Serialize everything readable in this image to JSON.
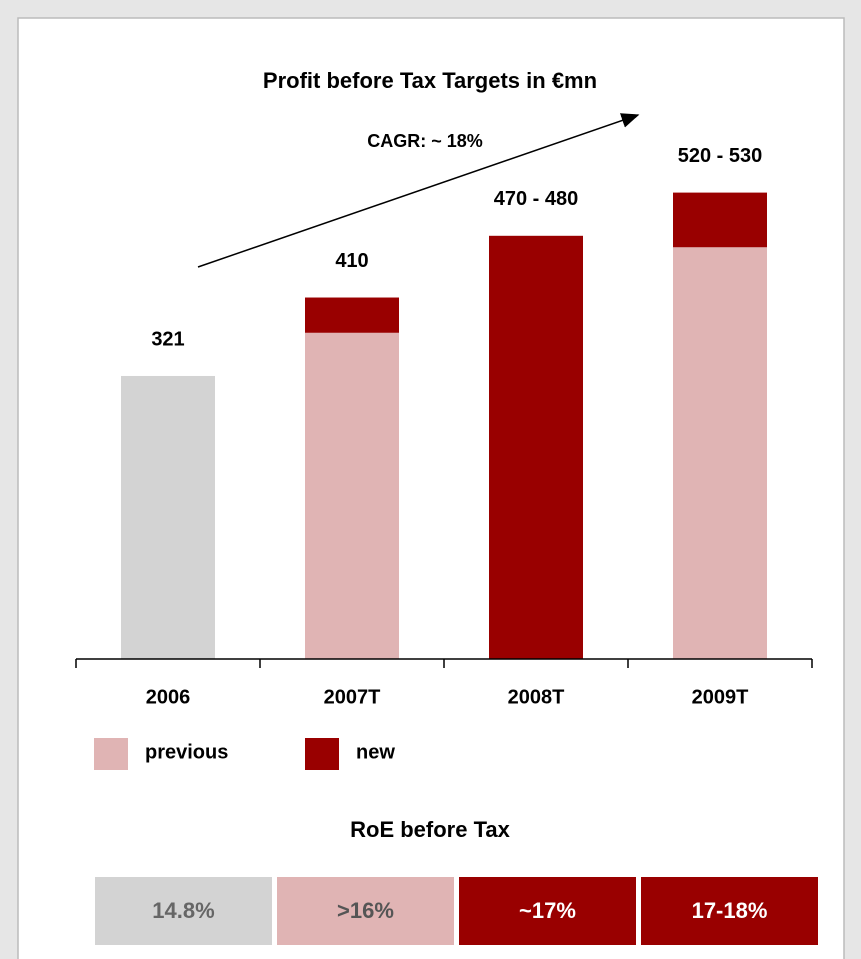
{
  "chart_data": {
    "type": "stacked_bar",
    "title": "Profit before Tax Targets in €mn",
    "annotation": "CAGR: ~ 18%",
    "categories": [
      "2006",
      "2007T",
      "2008T",
      "2009T"
    ],
    "bar_labels": [
      "321",
      "410",
      "470 - 480",
      "520 - 530"
    ],
    "series": [
      {
        "color": "#d3d3d3",
        "values": [
          321,
          null,
          null,
          null
        ]
      },
      {
        "name": "previous",
        "color": "#e0b4b4",
        "values": [
          null,
          370,
          null,
          467
        ]
      },
      {
        "name": "new",
        "color": "#990000",
        "values": [
          null,
          40,
          480,
          62
        ]
      }
    ],
    "ylim": [
      0,
      600
    ]
  },
  "roe": {
    "title": "RoE before Tax",
    "cells": [
      {
        "label": "14.8%",
        "color": "#d3d3d3",
        "text_color": "#666666"
      },
      {
        "label": ">16%",
        "color": "#e0b4b4",
        "text_color": "#555555"
      },
      {
        "label": "~17%",
        "color": "#990000",
        "text_color": "#ffffff"
      },
      {
        "label": "17-18%",
        "color": "#990000",
        "text_color": "#ffffff"
      }
    ]
  }
}
